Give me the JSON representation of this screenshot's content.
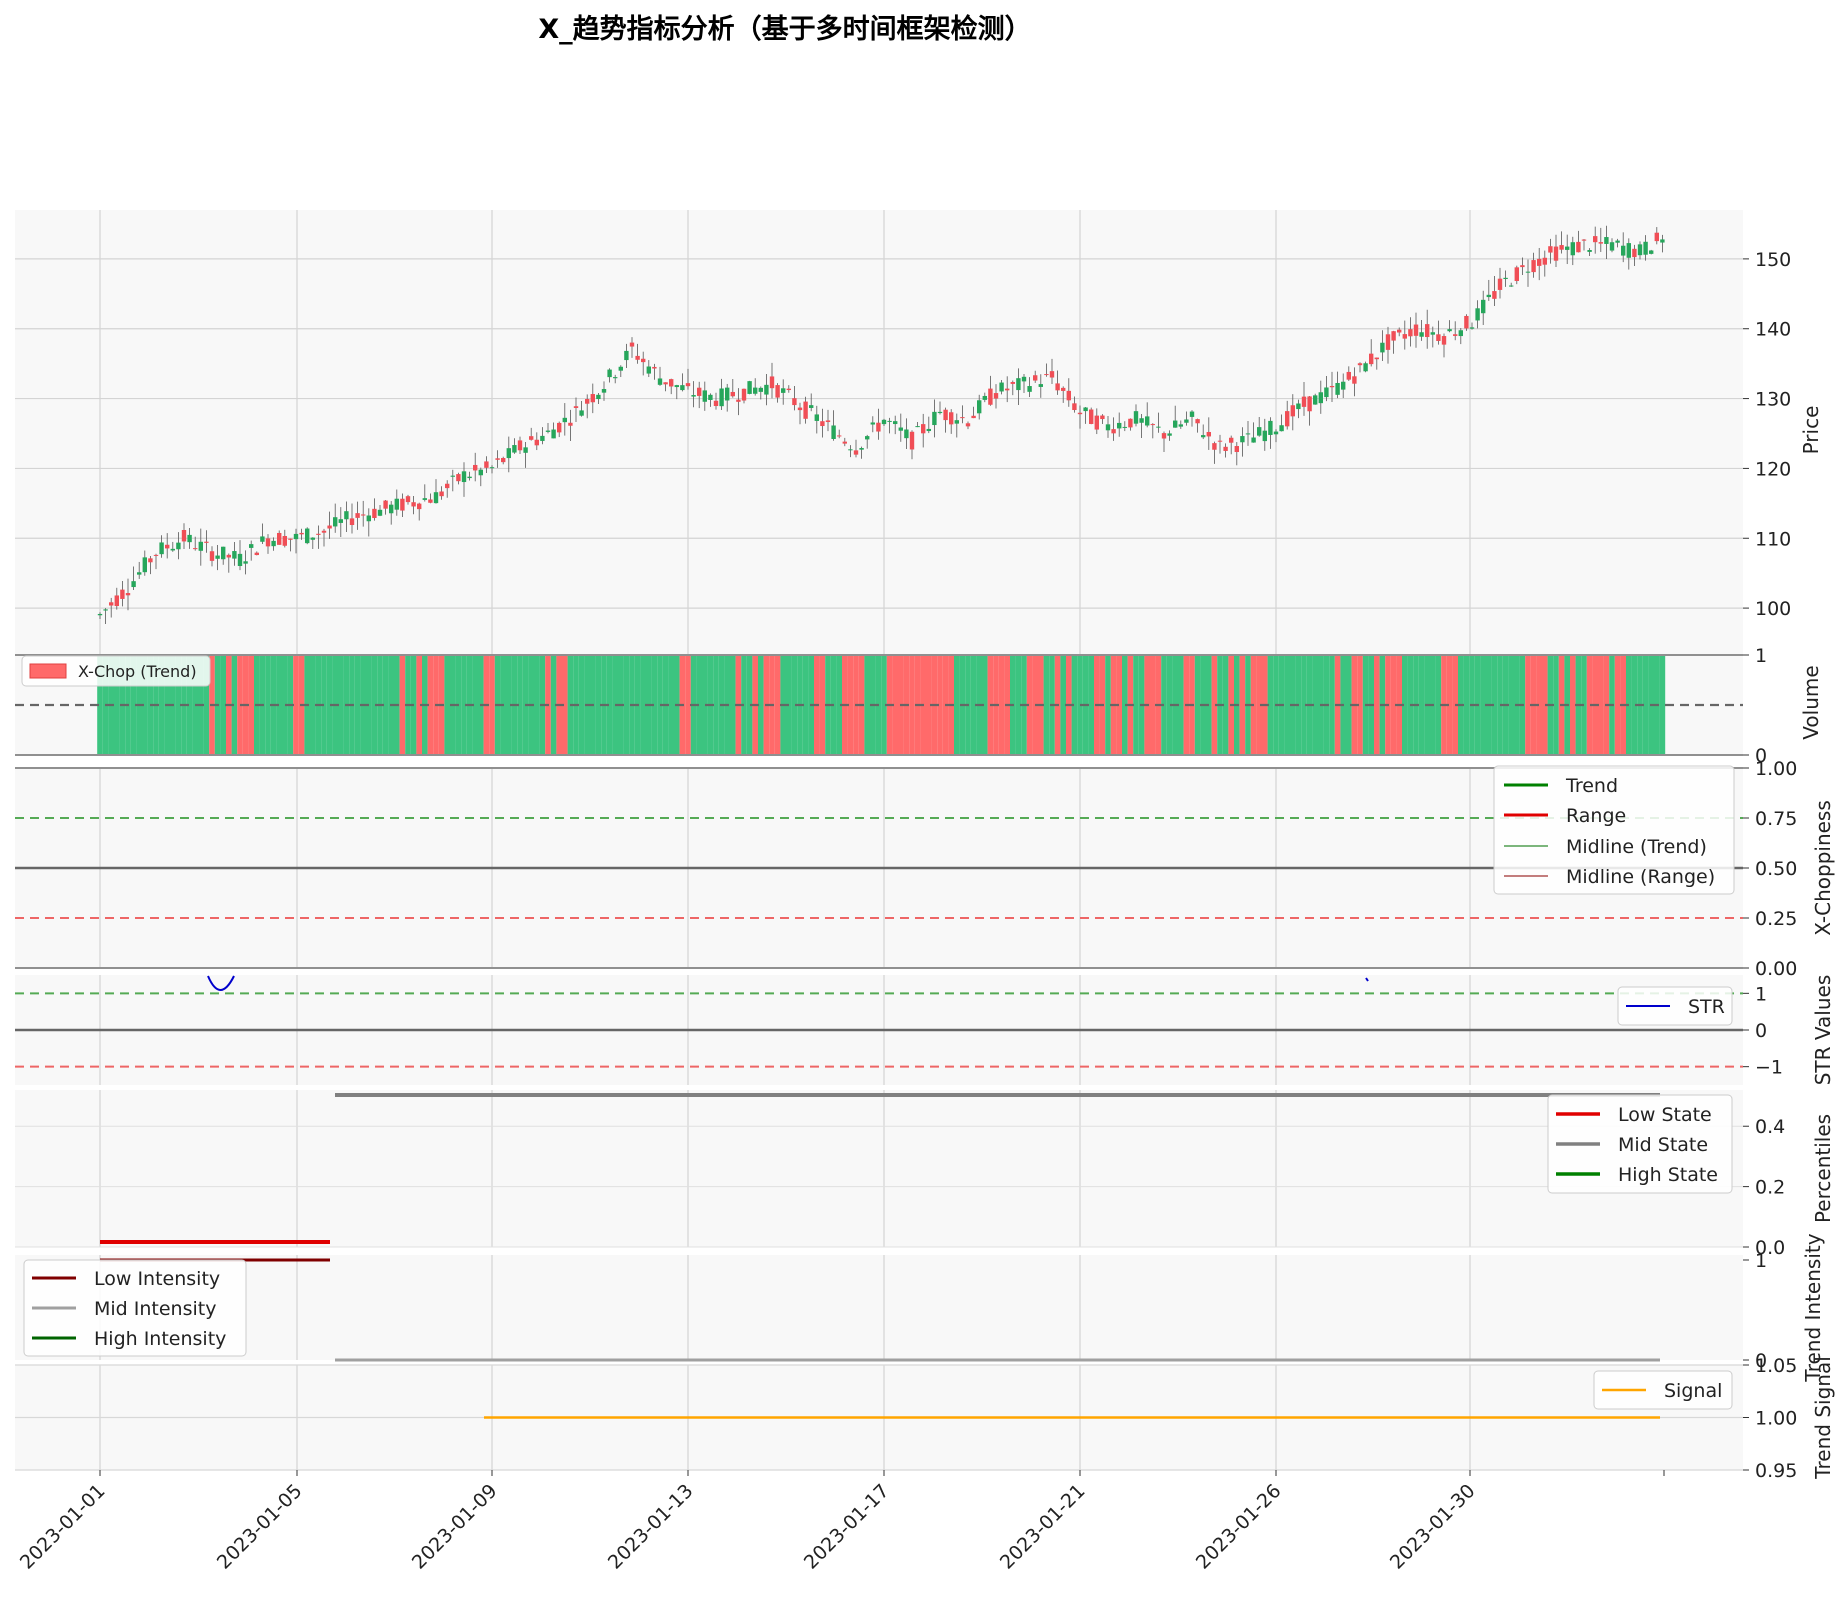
{
  "chart_data": {
    "title": "X_趋势指标分析（基于多时间框架检测）",
    "type": "multi-panel",
    "colors": {
      "up": "#26a65b",
      "down": "#f04e56",
      "trend": "#008000",
      "range": "#e00000",
      "str": "#0000cc",
      "mid": "#808080",
      "signal": "#ffa500",
      "low_intensity": "#800000",
      "mid_intensity": "#a0a0a0",
      "high_intensity": "#006400"
    },
    "x_ticks": [
      "2023-01-01",
      "2023-01-05",
      "2023-01-09",
      "2023-01-13",
      "2023-01-17",
      "2023-01-21",
      "2023-01-26",
      "2023-01-30"
    ],
    "panels": [
      {
        "id": "price",
        "ylabel": "Price",
        "ylim": [
          94,
          157
        ],
        "yticks": [
          "100",
          "110",
          "120",
          "130",
          "140",
          "150"
        ],
        "ohlc_anchors": [
          [
            0,
            99
          ],
          [
            5,
            103
          ],
          [
            10,
            108
          ],
          [
            15,
            110
          ],
          [
            20,
            108
          ],
          [
            25,
            107
          ],
          [
            30,
            110
          ],
          [
            35,
            110
          ],
          [
            40,
            111
          ],
          [
            45,
            113
          ],
          [
            50,
            114
          ],
          [
            55,
            115
          ],
          [
            60,
            116
          ],
          [
            65,
            119
          ],
          [
            70,
            120
          ],
          [
            75,
            123
          ],
          [
            80,
            125
          ],
          [
            85,
            128
          ],
          [
            90,
            132
          ],
          [
            95,
            137
          ],
          [
            100,
            133
          ],
          [
            105,
            131
          ],
          [
            110,
            130
          ],
          [
            115,
            131
          ],
          [
            120,
            132
          ],
          [
            125,
            129
          ],
          [
            130,
            126
          ],
          [
            135,
            123
          ],
          [
            140,
            127
          ],
          [
            145,
            124
          ],
          [
            150,
            128
          ],
          [
            155,
            127
          ],
          [
            160,
            131
          ],
          [
            165,
            132
          ],
          [
            170,
            133
          ],
          [
            175,
            128
          ],
          [
            180,
            126
          ],
          [
            185,
            127
          ],
          [
            190,
            125
          ],
          [
            195,
            127
          ],
          [
            200,
            123
          ],
          [
            205,
            124
          ],
          [
            210,
            126
          ],
          [
            215,
            129
          ],
          [
            220,
            131
          ],
          [
            225,
            134
          ],
          [
            230,
            138
          ],
          [
            235,
            140
          ],
          [
            240,
            139
          ],
          [
            245,
            141
          ],
          [
            250,
            146
          ],
          [
            255,
            149
          ],
          [
            260,
            151
          ],
          [
            265,
            152
          ],
          [
            270,
            152
          ],
          [
            275,
            151
          ],
          [
            279,
            153
          ]
        ]
      },
      {
        "id": "volume",
        "ylabel": "Volume",
        "ylim": [
          0,
          1.05
        ],
        "yticks": [
          "0",
          "1"
        ],
        "legend": [
          "X-Chop (Trend)"
        ],
        "bar_pattern": "GGGGGGGGGGGGGGGGGGGGRGGRGRRRGGGGGGGRRGGGGGGGGGGGGGGGGGRGGRGRRRGGGGGGGRRGGGGGGGGGRGRRGGGGGGGGGGGGGGGGGGGGRRGGGGGGGGRGGRGRRRGGGGGGRRGGGRRRRGGGGRRRRRRRRRRRRGGGGGGRRRRGGGRRRGGRGRGGGGRRGRRGRGGRRRGGGGRRGGGRGGRGRGRRRGGGGGGGGGGGGRGGRRGGRGRRRGGGGGGGRRRGGGGGGGGGGGGRRRRGGRGRGGRRRRGRRGG"
      },
      {
        "id": "xchop",
        "ylabel": "X-Choppiness",
        "ylim": [
          0,
          1
        ],
        "yticks": [
          "0.00",
          "0.25",
          "0.50",
          "0.75",
          "1.00"
        ],
        "legend": [
          "Trend",
          "Range",
          "Midline (Trend)",
          "Midline (Range)"
        ]
      },
      {
        "id": "str",
        "ylabel": "STR Values",
        "ylim": [
          -1.5,
          1.5
        ],
        "yticks": [
          "−1",
          "0",
          "1"
        ],
        "legend": [
          "STR"
        ]
      },
      {
        "id": "percentiles",
        "ylabel": "Percentiles",
        "ylim": [
          0,
          0.52
        ],
        "yticks": [
          "0.0",
          "0.2",
          "0.4"
        ],
        "legend": [
          "Low State",
          "Mid State",
          "High State"
        ]
      },
      {
        "id": "intensity",
        "ylabel": "Trend Intensity",
        "ylim": [
          0,
          1.05
        ],
        "yticks": [
          "0",
          "1"
        ],
        "legend": [
          "Low Intensity",
          "Mid Intensity",
          "High Intensity"
        ]
      },
      {
        "id": "signal",
        "ylabel": "Trend Signal",
        "ylim": [
          0.95,
          1.05
        ],
        "yticks": [
          "0.95",
          "1.00",
          "1.05"
        ],
        "legend": [
          "Signal"
        ]
      }
    ]
  }
}
